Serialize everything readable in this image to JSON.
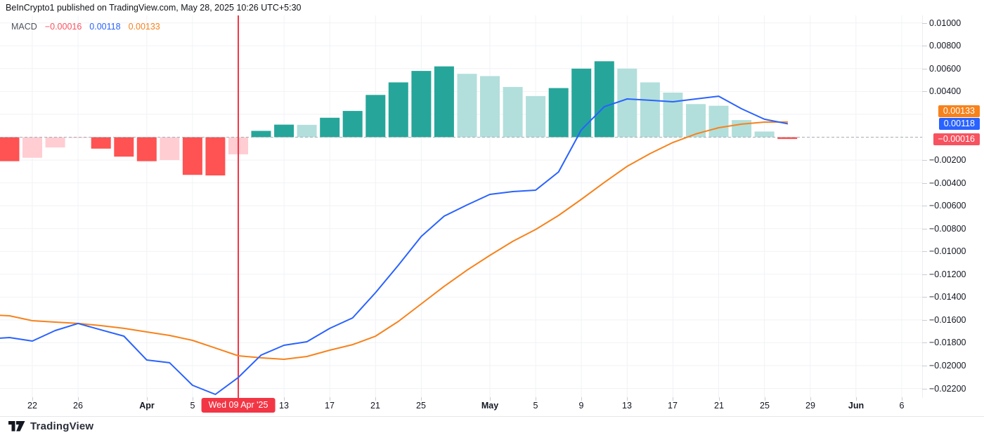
{
  "header": {
    "publish_line": "BeInCrypto1 published on TradingView.com, May 28, 2025 10:26 UTC+5:30"
  },
  "legend": {
    "indicator": "MACD",
    "histogram_value": "−0.00016",
    "macd_value": "0.00118",
    "signal_value": "0.00133"
  },
  "colors": {
    "hist_up_strong": "#26a69a",
    "hist_up_weak": "#b2dfdb",
    "hist_down_strong": "#ff5252",
    "hist_down_weak": "#ffcdd2",
    "macd_line": "#2962ff",
    "signal_line": "#f7821c",
    "hist_value_text": "#f7525f",
    "event_red": "#f23645",
    "grid": "#f1f2f5",
    "zero_dash": "#a8acb5"
  },
  "footer": {
    "brand": "TradingView"
  },
  "chart_data": {
    "type": "bar",
    "subtype": "MACD indicator panel (histogram + MACD line + signal line)",
    "bar_period_days": 2,
    "title": "MACD",
    "xlabel": "",
    "ylabel": "",
    "ylim": [
      -0.0235,
      0.0107
    ],
    "grid": true,
    "dates": [
      "Mar 20",
      "Mar 22",
      "Mar 24",
      "Mar 26",
      "Mar 28",
      "Mar 30",
      "Apr 1",
      "Apr 3",
      "Apr 5",
      "Apr 7",
      "Apr 9",
      "Apr 11",
      "Apr 13",
      "Apr 15",
      "Apr 17",
      "Apr 19",
      "Apr 21",
      "Apr 23",
      "Apr 25",
      "Apr 27",
      "Apr 29",
      "May 1",
      "May 3",
      "May 5",
      "May 7",
      "May 9",
      "May 11",
      "May 13",
      "May 15",
      "May 17",
      "May 19",
      "May 21",
      "May 23",
      "May 25",
      "May 27"
    ],
    "histogram": {
      "name": "Histogram",
      "values": [
        -0.0021,
        -0.0018,
        -0.0009,
        -5e-05,
        -0.001,
        -0.0017,
        -0.0021,
        -0.002,
        -0.0033,
        -0.00335,
        -0.0015,
        0.00055,
        0.0011,
        0.00108,
        0.0017,
        0.0023,
        0.0037,
        0.0048,
        0.0058,
        0.0062,
        0.00555,
        0.00535,
        0.0044,
        0.0036,
        0.0043,
        0.006,
        0.00665,
        0.006,
        0.0048,
        0.0039,
        0.0029,
        0.00275,
        0.0015,
        0.0005,
        -0.00016
      ],
      "trend": [
        "fall",
        "rise",
        "rise",
        "rise",
        "fall",
        "fall",
        "fall",
        "rise",
        "fall",
        "fall",
        "rise",
        "rise",
        "rise",
        "fall",
        "rise",
        "rise",
        "rise",
        "rise",
        "rise",
        "rise",
        "fall",
        "fall",
        "fall",
        "fall",
        "rise",
        "rise",
        "rise",
        "fall",
        "fall",
        "fall",
        "fall",
        "fall",
        "fall",
        "fall",
        "fall"
      ]
    },
    "series": [
      {
        "name": "Signal line",
        "color_key": "signal_line",
        "lead_value": -0.0156,
        "values": [
          -0.01564,
          -0.01607,
          -0.01619,
          -0.01631,
          -0.0165,
          -0.01674,
          -0.01705,
          -0.01736,
          -0.01779,
          -0.01846,
          -0.01914,
          -0.01932,
          -0.01945,
          -0.0192,
          -0.01865,
          -0.01816,
          -0.01742,
          -0.01613,
          -0.01459,
          -0.01306,
          -0.01164,
          -0.01035,
          -0.00912,
          -0.00808,
          -0.00685,
          -0.00544,
          -0.00396,
          -0.00255,
          -0.00144,
          -0.00046,
          0.00028,
          0.00083,
          0.00114,
          0.00132,
          0.00133
        ]
      },
      {
        "name": "MACD line",
        "color_key": "macd_line",
        "lead_value": -0.0176,
        "values": [
          -0.01754,
          -0.01785,
          -0.01693,
          -0.01631,
          -0.01687,
          -0.01742,
          -0.01951,
          -0.01975,
          -0.02172,
          -0.02252,
          -0.02104,
          -0.01908,
          -0.01822,
          -0.01791,
          -0.01674,
          -0.01582,
          -0.01361,
          -0.01121,
          -0.00869,
          -0.00691,
          -0.00593,
          -0.00501,
          -0.00476,
          -0.00464,
          -0.00304,
          0.00065,
          0.00267,
          0.00335,
          0.00323,
          0.0031,
          0.00335,
          0.00359,
          0.00249,
          0.00157,
          0.00118
        ]
      }
    ],
    "y_axis": {
      "ticks": [
        {
          "label": "0.01000",
          "value": 0.01
        },
        {
          "label": "0.00800",
          "value": 0.008
        },
        {
          "label": "0.00600",
          "value": 0.006
        },
        {
          "label": "0.00400",
          "value": 0.004
        },
        {
          "label": "−0.00200",
          "value": -0.002
        },
        {
          "label": "−0.00400",
          "value": -0.004
        },
        {
          "label": "−0.00600",
          "value": -0.006
        },
        {
          "label": "−0.00800",
          "value": -0.008
        },
        {
          "label": "−0.01000",
          "value": -0.01
        },
        {
          "label": "−0.01200",
          "value": -0.012
        },
        {
          "label": "−0.01400",
          "value": -0.014
        },
        {
          "label": "−0.01600",
          "value": -0.016
        },
        {
          "label": "−0.01800",
          "value": -0.018
        },
        {
          "label": "−0.02000",
          "value": -0.02
        },
        {
          "label": "−0.02200",
          "value": -0.022
        }
      ],
      "grid_values": [
        0.01,
        0.008,
        0.006,
        0.004,
        0.002,
        -0.002,
        -0.004,
        -0.006,
        -0.008,
        -0.01,
        -0.012,
        -0.014,
        -0.016,
        -0.018,
        -0.02,
        -0.022
      ]
    },
    "x_axis": {
      "ticks": [
        {
          "label": "22",
          "index": 1,
          "month": false
        },
        {
          "label": "26",
          "index": 3,
          "month": false
        },
        {
          "label": "Apr",
          "index": 6,
          "month": true
        },
        {
          "label": "5",
          "index": 8,
          "month": false
        },
        {
          "label": "13",
          "index": 12,
          "month": false
        },
        {
          "label": "17",
          "index": 14,
          "month": false
        },
        {
          "label": "21",
          "index": 16,
          "month": false
        },
        {
          "label": "25",
          "index": 18,
          "month": false
        },
        {
          "label": "May",
          "index": 21,
          "month": true
        },
        {
          "label": "5",
          "index": 23,
          "month": false
        },
        {
          "label": "9",
          "index": 25,
          "month": false
        },
        {
          "label": "13",
          "index": 27,
          "month": false
        },
        {
          "label": "17",
          "index": 29,
          "month": false
        },
        {
          "label": "21",
          "index": 31,
          "month": false
        },
        {
          "label": "25",
          "index": 33,
          "month": false
        },
        {
          "label": "29",
          "index": 35,
          "month": false
        },
        {
          "label": "Jun",
          "index": 37,
          "month": true
        },
        {
          "label": "6",
          "index": 39,
          "month": false
        }
      ],
      "grid_indices": [
        1,
        3,
        6,
        8,
        10,
        12,
        14,
        16,
        18,
        21,
        23,
        25,
        27,
        29,
        31,
        33,
        35,
        37,
        39
      ]
    },
    "event_line": {
      "index": 10,
      "label": "Wed 09 Apr '25"
    },
    "axis_badges": [
      {
        "name": "signal",
        "label": "0.00133",
        "color_key": "signal_line",
        "value": 0.00133
      },
      {
        "name": "macd",
        "label": "0.00118",
        "color_key": "macd_line",
        "value": 0.00118
      },
      {
        "name": "histogram",
        "label": "−0.00016",
        "color_key": "hist_value_text",
        "value": -0.00016
      }
    ]
  }
}
